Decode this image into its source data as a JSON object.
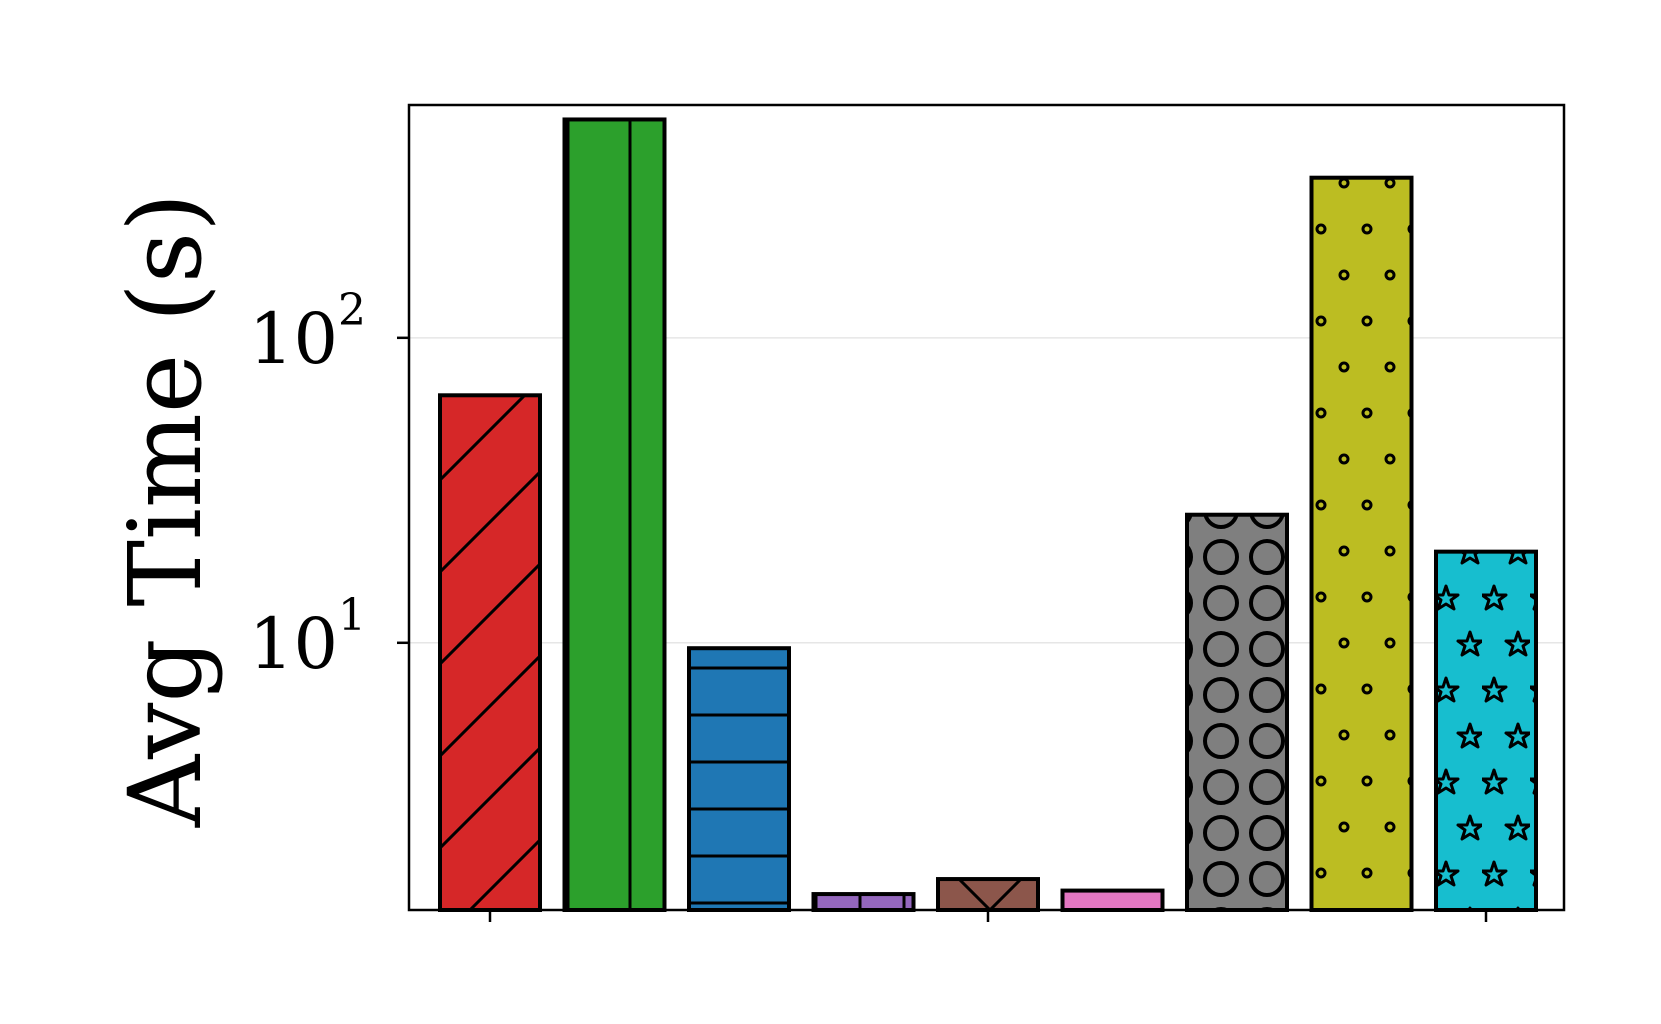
{
  "chart_data": {
    "type": "bar",
    "title": "",
    "xlabel": "",
    "ylabel": "Avg Time (s)",
    "yscale": "log",
    "ylim": [
      1.33,
      580
    ],
    "grid": "y-major",
    "legend": "none",
    "y_ticks": [
      {
        "base": "10",
        "exp": "1",
        "value": 10
      },
      {
        "base": "10",
        "exp": "2",
        "value": 100
      }
    ],
    "bars": [
      {
        "value": 64.8,
        "color": "#d62728",
        "pattern": "diagonal-hatch"
      },
      {
        "value": 520,
        "color": "#2ca02c",
        "pattern": "vertical-hatch"
      },
      {
        "value": 9.6,
        "color": "#1f77b4",
        "pattern": "horizontal-hatch"
      },
      {
        "value": 1.5,
        "color": "#9467bd",
        "pattern": "grid-hatch"
      },
      {
        "value": 1.68,
        "color": "#8c564b",
        "pattern": "cross-hatch"
      },
      {
        "value": 1.54,
        "color": "#e377c2",
        "pattern": "small-circles"
      },
      {
        "value": 26.3,
        "color": "#7f7f7f",
        "pattern": "large-circles"
      },
      {
        "value": 335,
        "color": "#bcbd22",
        "pattern": "dots"
      },
      {
        "value": 19.9,
        "color": "#17becf",
        "pattern": "stars"
      }
    ]
  }
}
